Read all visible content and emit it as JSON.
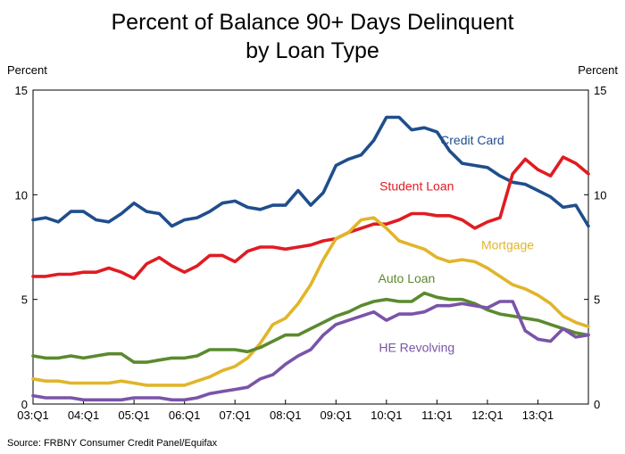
{
  "chart_data": {
    "type": "line",
    "title": [
      "Percent of Balance 90+ Days Delinquent",
      "by Loan Type"
    ],
    "ylabel_left": "Percent",
    "ylabel_right": "Percent",
    "ylim": [
      0,
      15
    ],
    "yticks": [
      0,
      5,
      10,
      15
    ],
    "x_tick_labels": [
      "03:Q1",
      "04:Q1",
      "05:Q1",
      "06:Q1",
      "07:Q1",
      "08:Q1",
      "09:Q1",
      "10:Q1",
      "11:Q1",
      "12:Q1",
      "13:Q1"
    ],
    "x_start": 2003.0,
    "x_step": 0.25,
    "x_max": 2014.0,
    "source": "Source: FRBNY Consumer Credit Panel/Equifax",
    "series": [
      {
        "name": "Credit Card",
        "color": "#1f4e8c",
        "values": [
          8.8,
          8.9,
          8.7,
          9.2,
          9.2,
          8.8,
          8.7,
          9.1,
          9.6,
          9.2,
          9.1,
          8.5,
          8.8,
          8.9,
          9.2,
          9.6,
          9.7,
          9.4,
          9.3,
          9.5,
          9.5,
          10.2,
          9.5,
          10.1,
          11.4,
          11.7,
          11.9,
          12.6,
          13.7,
          13.7,
          13.1,
          13.2,
          13.0,
          12.1,
          11.5,
          11.4,
          11.3,
          10.9,
          10.6,
          10.5,
          10.2,
          9.9,
          9.4,
          9.5,
          8.5
        ],
        "label_x": 2011.7,
        "label_y": 12.4
      },
      {
        "name": "Student Loan",
        "color": "#e01c22",
        "values": [
          6.1,
          6.1,
          6.2,
          6.2,
          6.3,
          6.3,
          6.5,
          6.3,
          6.0,
          6.7,
          7.0,
          6.6,
          6.3,
          6.6,
          7.1,
          7.1,
          6.8,
          7.3,
          7.5,
          7.5,
          7.4,
          7.5,
          7.6,
          7.8,
          7.9,
          8.2,
          8.4,
          8.6,
          8.6,
          8.8,
          9.1,
          9.1,
          9.0,
          9.0,
          8.8,
          8.4,
          8.7,
          8.9,
          11.0,
          11.7,
          11.2,
          10.9,
          11.8,
          11.5,
          11.0
        ],
        "label_x": 2010.6,
        "label_y": 10.2
      },
      {
        "name": "Mortgage",
        "color": "#e1b52a",
        "values": [
          1.2,
          1.1,
          1.1,
          1.0,
          1.0,
          1.0,
          1.0,
          1.1,
          1.0,
          0.9,
          0.9,
          0.9,
          0.9,
          1.1,
          1.3,
          1.6,
          1.8,
          2.2,
          2.9,
          3.8,
          4.1,
          4.8,
          5.7,
          6.9,
          7.9,
          8.2,
          8.8,
          8.9,
          8.4,
          7.8,
          7.6,
          7.4,
          7.0,
          6.8,
          6.9,
          6.8,
          6.5,
          6.1,
          5.7,
          5.5,
          5.2,
          4.8,
          4.2,
          3.9,
          3.7
        ],
        "label_x": 2012.4,
        "label_y": 7.4
      },
      {
        "name": "Auto Loan",
        "color": "#5a8a2e",
        "values": [
          2.3,
          2.2,
          2.2,
          2.3,
          2.2,
          2.3,
          2.4,
          2.4,
          2.0,
          2.0,
          2.1,
          2.2,
          2.2,
          2.3,
          2.6,
          2.6,
          2.6,
          2.5,
          2.7,
          3.0,
          3.3,
          3.3,
          3.6,
          3.9,
          4.2,
          4.4,
          4.7,
          4.9,
          5.0,
          4.9,
          4.9,
          5.3,
          5.1,
          5.0,
          5.0,
          4.8,
          4.5,
          4.3,
          4.2,
          4.1,
          4.0,
          3.8,
          3.6,
          3.4,
          3.3
        ],
        "label_x": 2010.4,
        "label_y": 5.8
      },
      {
        "name": "HE Revolving",
        "color": "#7a54a8",
        "values": [
          0.4,
          0.3,
          0.3,
          0.3,
          0.2,
          0.2,
          0.2,
          0.2,
          0.3,
          0.3,
          0.3,
          0.2,
          0.2,
          0.3,
          0.5,
          0.6,
          0.7,
          0.8,
          1.2,
          1.4,
          1.9,
          2.3,
          2.6,
          3.3,
          3.8,
          4.0,
          4.2,
          4.4,
          4.0,
          4.3,
          4.3,
          4.4,
          4.7,
          4.7,
          4.8,
          4.7,
          4.6,
          4.9,
          4.9,
          3.5,
          3.1,
          3.0,
          3.6,
          3.2,
          3.3
        ],
        "label_x": 2010.6,
        "label_y": 2.5
      }
    ]
  }
}
